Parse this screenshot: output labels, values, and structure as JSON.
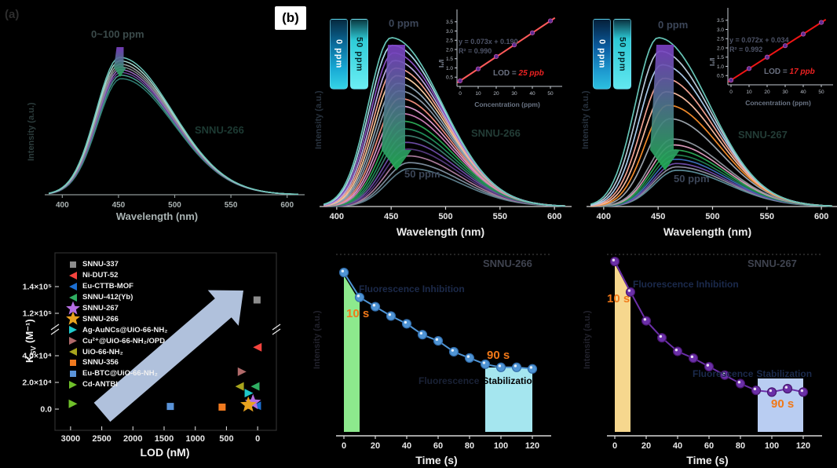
{
  "chart_data": [
    {
      "id": "a",
      "type": "line",
      "panel_tag": "(a)",
      "material": "SNNU-266",
      "annotation": "0~100 ppm",
      "concentration_range_ppm": [
        0,
        100
      ],
      "xlabel": "Wavelength (nm)",
      "ylabel": "Intensity (a.u.)",
      "xrange": [
        390,
        610
      ],
      "xticks": [
        400,
        450,
        500,
        550,
        600
      ],
      "series": [
        {
          "h": 1.0,
          "color": "#6cc6ba"
        },
        {
          "h": 0.975,
          "color": "#aadcd2"
        },
        {
          "h": 0.95,
          "color": "#9aa2a2"
        },
        {
          "h": 0.93,
          "color": "#848a8e"
        },
        {
          "h": 0.91,
          "color": "#9a6cc0"
        },
        {
          "h": 0.89,
          "color": "#6a4a9c"
        },
        {
          "h": 0.87,
          "color": "#4a9a8e"
        },
        {
          "h": 0.845,
          "color": "#2f7c72"
        }
      ]
    },
    {
      "id": "b",
      "type": "line",
      "panel_tag": "(b)",
      "material": "SNNU-266",
      "annotations": {
        "top": "0 ppm",
        "bottom": "50 ppm"
      },
      "cuvette_labels": [
        "0 ppm",
        "50 ppm"
      ],
      "concentration_range_ppm": [
        0,
        50
      ],
      "xlabel": "Wavelength (nm)",
      "ylabel": "Intensity (a.u.)",
      "xrange": [
        390,
        610
      ],
      "xticks": [
        400,
        450,
        500,
        550,
        600
      ],
      "series": [
        {
          "h": 1.0,
          "color": "#66c4b6"
        },
        {
          "h": 0.955,
          "color": "#a9d6e6"
        },
        {
          "h": 0.91,
          "color": "#8a52c2"
        },
        {
          "h": 0.865,
          "color": "#b9a9e0"
        },
        {
          "h": 0.82,
          "color": "#f2a290"
        },
        {
          "h": 0.775,
          "color": "#f4c89e"
        },
        {
          "h": 0.73,
          "color": "#92a8b8"
        },
        {
          "h": 0.685,
          "color": "#8a98a6"
        },
        {
          "h": 0.64,
          "color": "#ea8a7a"
        },
        {
          "h": 0.595,
          "color": "#da9aca"
        },
        {
          "h": 0.55,
          "color": "#c77ab2"
        },
        {
          "h": 0.505,
          "color": "#2aa252"
        },
        {
          "h": 0.46,
          "color": "#1f8a58"
        },
        {
          "h": 0.42,
          "color": "#3a7a6a"
        },
        {
          "h": 0.38,
          "color": "#6a4aa2"
        },
        {
          "h": 0.34,
          "color": "#52387a"
        },
        {
          "h": 0.3,
          "color": "#a87a9a"
        },
        {
          "h": 0.26,
          "color": "#7a8a9a"
        },
        {
          "h": 0.225,
          "color": "#5a7a88"
        }
      ],
      "inset": {
        "equation": "y = 0.073x + 0.190",
        "r_squared": "R² = 0.990",
        "lod_prefix": "LOD = ",
        "lod_value": "25 ppb",
        "lod_color": "#ee2222",
        "xlabel": "Concentration (ppm)",
        "ylabel": "I₀/I",
        "x": [
          0,
          10,
          20,
          30,
          40,
          50
        ],
        "y": [
          0.3,
          0.95,
          1.62,
          2.25,
          2.9,
          3.55
        ],
        "yticks": [
          0.5,
          1.0,
          1.5,
          2.0,
          2.5,
          3.0,
          3.5
        ],
        "line_color": "#ff5a5a"
      }
    },
    {
      "id": "c",
      "type": "line",
      "material": "SNNU-267",
      "annotations": {
        "top": "0 ppm",
        "bottom": "50 ppm"
      },
      "cuvette_labels": [
        "0 ppm",
        "50 ppm"
      ],
      "concentration_range_ppm": [
        0,
        50
      ],
      "xlabel": "Wavelength (nm)",
      "ylabel": "Intensity (a.u.)",
      "xrange": [
        390,
        610
      ],
      "xticks": [
        400,
        450,
        500,
        550,
        600
      ],
      "series": [
        {
          "h": 1.0,
          "color": "#66c4b6"
        },
        {
          "h": 0.92,
          "color": "#b9c9d9"
        },
        {
          "h": 0.84,
          "color": "#a9c9e9"
        },
        {
          "h": 0.76,
          "color": "#f2a292"
        },
        {
          "h": 0.68,
          "color": "#f4b89e"
        },
        {
          "h": 0.6,
          "color": "#f08a2a"
        },
        {
          "h": 0.52,
          "color": "#9aa2aa"
        },
        {
          "h": 0.4,
          "color": "#8a929a"
        },
        {
          "h": 0.365,
          "color": "#d898b8"
        },
        {
          "h": 0.335,
          "color": "#2aa252"
        },
        {
          "h": 0.305,
          "color": "#1f7a4a"
        },
        {
          "h": 0.28,
          "color": "#3a6ab2"
        },
        {
          "h": 0.255,
          "color": "#6a4aa2"
        },
        {
          "h": 0.235,
          "color": "#8a8a9c"
        },
        {
          "h": 0.215,
          "color": "#5a8a96"
        }
      ],
      "inset": {
        "equation": "y = 0.072x + 0.034",
        "r_squared": "R² = 0.992",
        "lod_prefix": "LOD = ",
        "lod_value": "17 ppb",
        "lod_color": "#ee2222",
        "xlabel": "Concentration (ppm)",
        "ylabel": "I₀/I",
        "x": [
          0,
          10,
          20,
          30,
          40,
          50
        ],
        "y": [
          0.25,
          0.88,
          1.5,
          2.12,
          2.75,
          3.38
        ],
        "yticks": [
          0.5,
          1.0,
          1.5,
          2.0,
          2.5,
          3.0,
          3.5
        ],
        "line_color": "#f01515"
      }
    },
    {
      "id": "d",
      "type": "scatter",
      "xlabel": "LOD (nM)",
      "ylabel_parts": {
        "main": "K",
        "sub": "SV",
        "rest": " (M⁻¹)"
      },
      "xticks": [
        3000,
        2500,
        2000,
        1500,
        1000,
        500,
        0
      ],
      "yticks": [
        {
          "label": "0.0",
          "value": 0
        },
        {
          "label": "2.0×10⁴",
          "value": 20000
        },
        {
          "label": "4.0×10⁴",
          "value": 40000
        },
        {
          "label": "1.2×10⁵",
          "value": 120000
        },
        {
          "label": "1.4×10⁵",
          "value": 140000
        }
      ],
      "axis_break": true,
      "arrow_color": "#b9cbe8",
      "legend": [
        {
          "label": "SNNU-337",
          "marker": "square",
          "color": "#8c8c8c"
        },
        {
          "label": "Ni-DUT-52",
          "marker": "tri-left",
          "color": "#f5443e"
        },
        {
          "label": "Eu-CTTB-MOF",
          "marker": "tri-left",
          "color": "#1d6fd2"
        },
        {
          "label": "SNNU-412(Yb)",
          "marker": "tri-left",
          "color": "#2fae62"
        },
        {
          "label": "SNNU-267",
          "marker": "star",
          "color": "#b56fe3"
        },
        {
          "label": "SNNU-266",
          "marker": "star",
          "color": "#e8a21f"
        },
        {
          "label": "Ag-AuNCs@UiO-66-NH₂",
          "marker": "tri-right",
          "color": "#1fc9cb"
        },
        {
          "label": "Cu²⁺@UiO-66-NH₂/OPD",
          "marker": "tri-right",
          "color": "#b06a6a"
        },
        {
          "label": "UiO-66-NH₂",
          "marker": "tri-left",
          "color": "#a8a51d"
        },
        {
          "label": "SNNU-356",
          "marker": "square",
          "color": "#f07a1f"
        },
        {
          "label": "Eu-BTC@UiO-66-NH₂",
          "marker": "square",
          "color": "#5a93d8"
        },
        {
          "label": "Cd-ANTBI",
          "marker": "tri-right",
          "color": "#6fc02a"
        }
      ],
      "points": [
        {
          "label": "SNNU-337",
          "lod_nM": 10,
          "ksv": 130000
        },
        {
          "label": "Ni-DUT-52",
          "lod_nM": 5,
          "ksv": 50000
        },
        {
          "label": "Eu-CTTB-MOF",
          "lod_nM": 15,
          "ksv": 2500
        },
        {
          "label": "SNNU-412(Yb)",
          "lod_nM": 40,
          "ksv": 17000
        },
        {
          "label": "SNNU-267",
          "lod_nM": 75,
          "ksv": 5000
        },
        {
          "label": "SNNU-266",
          "lod_nM": 150,
          "ksv": 3200
        },
        {
          "label": "Ag-AuNCs@UiO-66-NH₂",
          "lod_nM": 140,
          "ksv": 12000
        },
        {
          "label": "Cu²⁺@UiO-66-NH₂/OPD",
          "lod_nM": 250,
          "ksv": 28000
        },
        {
          "label": "UiO-66-NH₂",
          "lod_nM": 290,
          "ksv": 17000
        },
        {
          "label": "SNNU-356",
          "lod_nM": 570,
          "ksv": 1500
        },
        {
          "label": "Eu-BTC@UiO-66-NH₂",
          "lod_nM": 1400,
          "ksv": 2000
        },
        {
          "label": "Cd-ANTBI",
          "lod_nM": 2960,
          "ksv": 4000
        }
      ]
    },
    {
      "id": "e",
      "type": "line-time",
      "title": "SNNU-266",
      "xlabel": "Time (s)",
      "ylabel": "Intensity (a.u.)",
      "xticks": [
        0,
        20,
        40,
        60,
        80,
        100,
        120
      ],
      "x": [
        0,
        10,
        20,
        30,
        40,
        50,
        60,
        70,
        80,
        90,
        100,
        110,
        120
      ],
      "intensity_rel": [
        1.0,
        0.84,
        0.78,
        0.72,
        0.67,
        0.6,
        0.56,
        0.49,
        0.45,
        0.41,
        0.39,
        0.39,
        0.38
      ],
      "point_color": "#4f94d4",
      "point_edge": "#2f6aa8",
      "shade1_color": "#8de98d",
      "shade2_color": "#a5e6ef",
      "time_color": "#f07818",
      "annotations": {
        "phase1": "Fluorescence Inhibition",
        "t1": "10 s",
        "t2": "90 s",
        "phase2_word1": "Fluorescence",
        "phase2_word2": "Stabilization"
      }
    },
    {
      "id": "f",
      "type": "line-time",
      "title": "SNNU-267",
      "xlabel": "Time (s)",
      "ylabel": "Intensity (a.u.)",
      "xticks": [
        0,
        20,
        40,
        60,
        80,
        100,
        120
      ],
      "x": [
        0,
        10,
        20,
        30,
        40,
        50,
        60,
        70,
        80,
        90,
        100,
        110,
        120
      ],
      "intensity_rel": [
        1.0,
        0.82,
        0.65,
        0.55,
        0.47,
        0.43,
        0.38,
        0.33,
        0.28,
        0.24,
        0.23,
        0.25,
        0.23
      ],
      "point_color": "#6b2fa8",
      "point_edge": "#47156e",
      "shade1_color": "#f6d78e",
      "shade2_color": "#b9cdf2",
      "time_color": "#f07818",
      "annotations": {
        "phase1": "Fluorescence Inhibition",
        "t1": "10 s",
        "t2": "90 s",
        "phase2_word1": "Fluorescence",
        "phase2_word2": "Stabilization"
      }
    }
  ]
}
